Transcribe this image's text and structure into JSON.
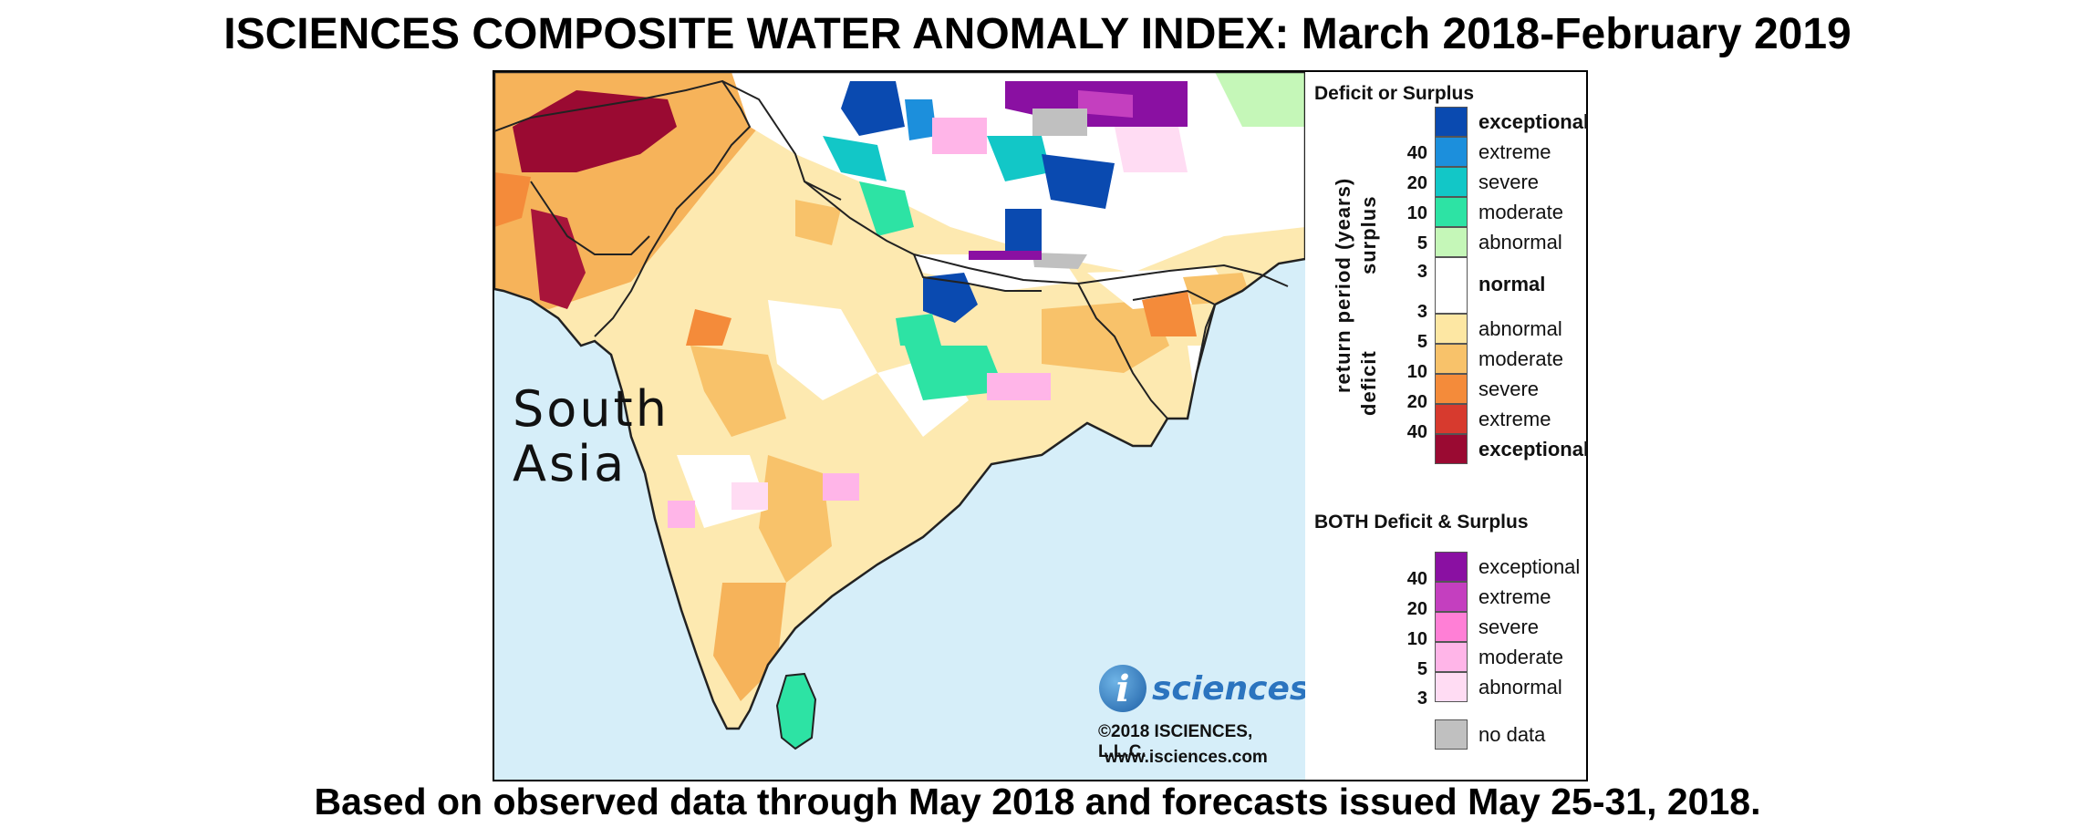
{
  "title": "ISCIENCES COMPOSITE WATER ANOMALY INDEX: March 2018-February 2019",
  "footer": "Based on observed data through May 2018 and forecasts issued May 25-31, 2018.",
  "map": {
    "region_label_line1": "South",
    "region_label_line2": "Asia",
    "ocean_color": "#d6eef9",
    "logo_mark": "i",
    "logo_text": "sciences",
    "copyright": "©2018 ISCIENCES, L.L.C.",
    "website": "www.isciences.com"
  },
  "legend": {
    "deficit_surplus_heading": "Deficit or Surplus",
    "axis_label": "return period (years)",
    "surplus_label": "surplus",
    "deficit_label": "deficit",
    "surplus_items": [
      {
        "label": "exceptional",
        "color": "#0a4ab0",
        "bold": true
      },
      {
        "label": "extreme",
        "color": "#1c8fdc",
        "bold": false
      },
      {
        "label": "severe",
        "color": "#12c7c7",
        "bold": false
      },
      {
        "label": "moderate",
        "color": "#2de3a4",
        "bold": false
      },
      {
        "label": "abnormal",
        "color": "#c5f7b8",
        "bold": false
      }
    ],
    "surplus_ticks": [
      "40",
      "20",
      "10",
      "5",
      "3"
    ],
    "normal": {
      "label": "normal",
      "color": "#ffffff"
    },
    "deficit_items": [
      {
        "label": "abnormal",
        "color": "#fde7a3",
        "bold": false
      },
      {
        "label": "moderate",
        "color": "#f8c26a",
        "bold": false
      },
      {
        "label": "severe",
        "color": "#f48b3a",
        "bold": false
      },
      {
        "label": "extreme",
        "color": "#d73a2e",
        "bold": false
      },
      {
        "label": "exceptional",
        "color": "#9a0a32",
        "bold": true
      }
    ],
    "deficit_ticks": [
      "3",
      "5",
      "10",
      "20",
      "40"
    ],
    "both_heading": "BOTH Deficit & Surplus",
    "both_items": [
      {
        "label": "exceptional",
        "color": "#8a10a2"
      },
      {
        "label": "extreme",
        "color": "#c43fbf"
      },
      {
        "label": "severe",
        "color": "#ff7fd6"
      },
      {
        "label": "moderate",
        "color": "#ffb5e8"
      },
      {
        "label": "abnormal",
        "color": "#ffdcf3"
      }
    ],
    "both_ticks": [
      "40",
      "20",
      "10",
      "5",
      "3"
    ],
    "no_data": {
      "label": "no data",
      "color": "#c0c0c0"
    }
  }
}
